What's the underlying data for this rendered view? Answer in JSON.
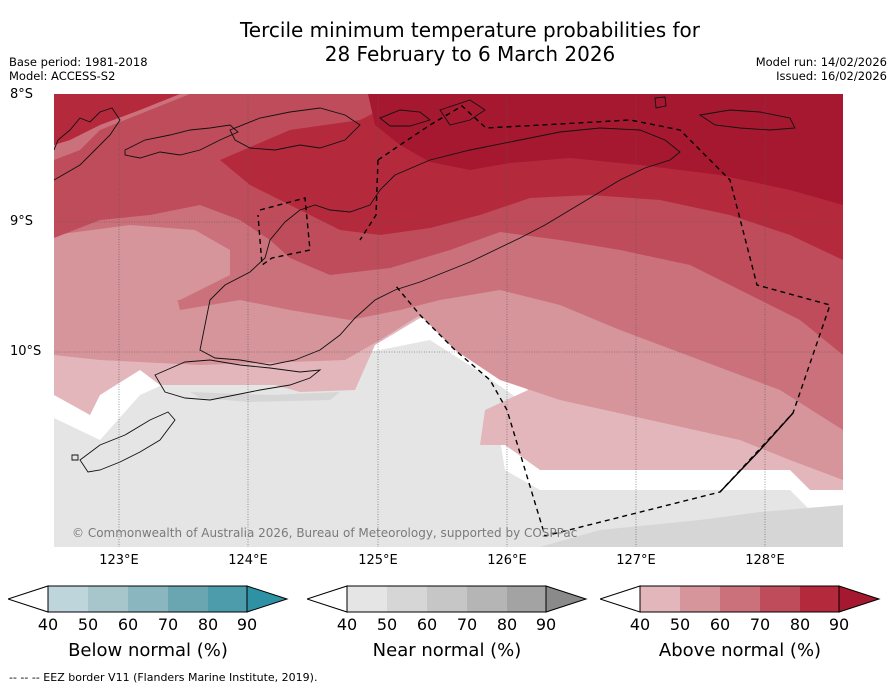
{
  "title_line1": "Tercile minimum temperature probabilities for",
  "title_line2": "28 February to 6 March 2026",
  "base_period": "Base period: 1981-2018",
  "model": "Model: ACCESS-S2",
  "model_run": "Model run: 14/02/2026",
  "issued": "Issued: 16/02/2026",
  "lat_labels": [
    "8°S",
    "9°S",
    "10°S"
  ],
  "lon_labels": [
    "123°E",
    "124°E",
    "125°E",
    "126°E",
    "127°E",
    "128°E"
  ],
  "copyright": "© Commonwealth of Australia 2026, Bureau of Meteorology, supported by COSPPac",
  "colorbars": [
    {
      "title": "Below normal (%)",
      "ticks": [
        "40",
        "50",
        "60",
        "70",
        "80",
        "90"
      ],
      "colors": [
        "#bed5db",
        "#a6c6cc",
        "#8ab6bf",
        "#6aa6b2",
        "#4c9cac",
        "#2e91a4"
      ]
    },
    {
      "title": "Near normal (%)",
      "ticks": [
        "40",
        "50",
        "60",
        "70",
        "80",
        "90"
      ],
      "colors": [
        "#e5e5e5",
        "#d6d6d6",
        "#c6c6c6",
        "#b5b5b5",
        "#a3a3a3",
        "#8a8a8a"
      ]
    },
    {
      "title": "Above normal (%)",
      "ticks": [
        "40",
        "50",
        "60",
        "70",
        "80",
        "90"
      ],
      "colors": [
        "#e3b6bb",
        "#d6949b",
        "#cb717b",
        "#bf4c5a",
        "#b5293d",
        "#a61830"
      ]
    }
  ],
  "footer": "--  --  -- EEZ border V11 (Flanders Marine Institute, 2019)."
}
